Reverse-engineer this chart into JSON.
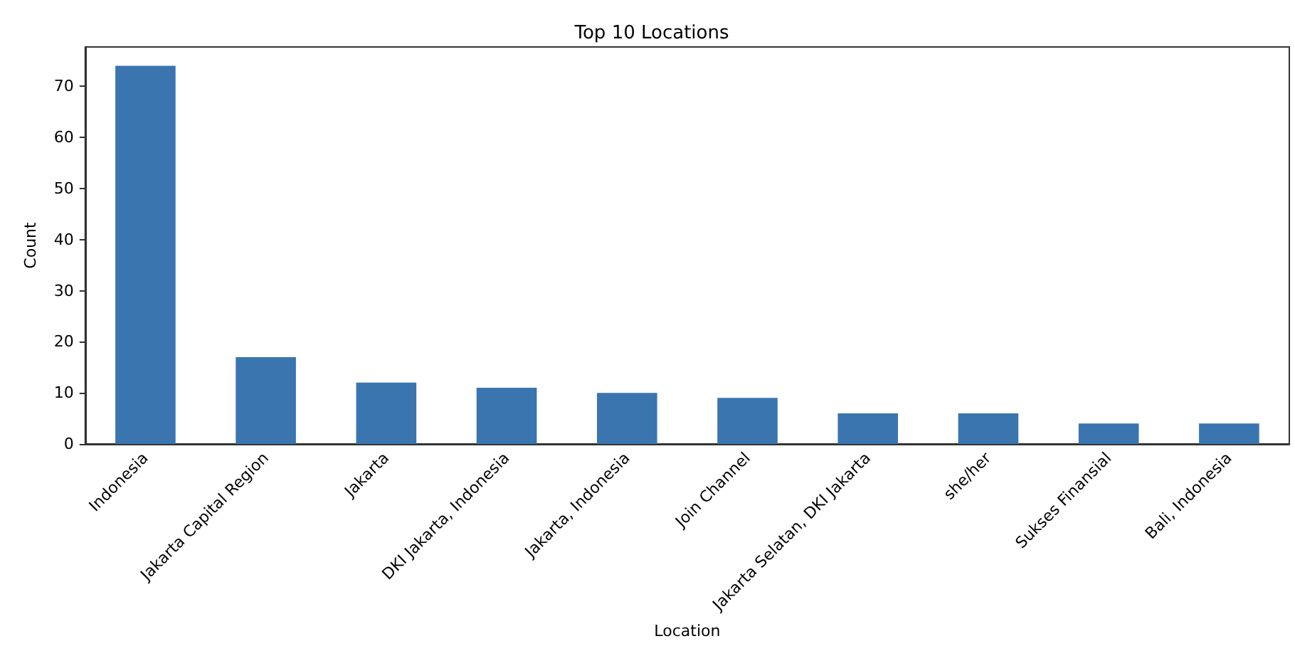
{
  "chart_data": {
    "type": "bar",
    "title": "Top 10 Locations",
    "xlabel": "Location",
    "ylabel": "Count",
    "categories": [
      "Indonesia",
      "Jakarta Capital Region",
      "Jakarta",
      "DKI Jakarta, Indonesia",
      "Jakarta, Indonesia",
      "Join Channel",
      "Jakarta Selatan, DKI Jakarta",
      "she/her",
      "Sukses Finansial",
      "Bali, Indonesia"
    ],
    "values": [
      74,
      17,
      12,
      11,
      10,
      9,
      6,
      6,
      4,
      4
    ],
    "color": "#3a75af",
    "ylim": [
      0,
      77.7
    ],
    "yticks": [
      0,
      10,
      20,
      30,
      40,
      50,
      60,
      70
    ],
    "grid": false
  }
}
